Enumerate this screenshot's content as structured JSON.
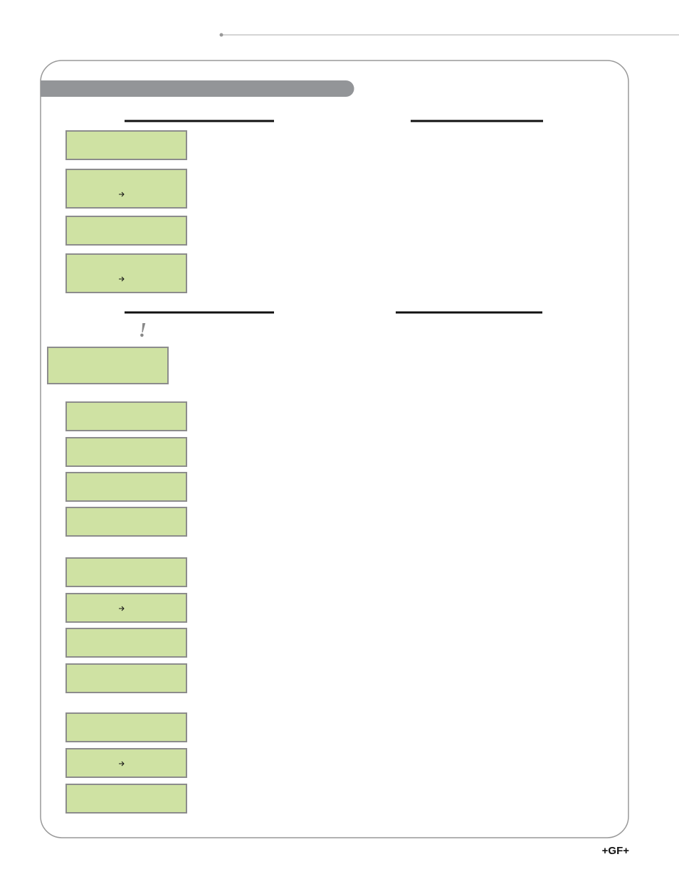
{
  "page": {
    "notice_mark": "!",
    "logo": "+GF+"
  }
}
